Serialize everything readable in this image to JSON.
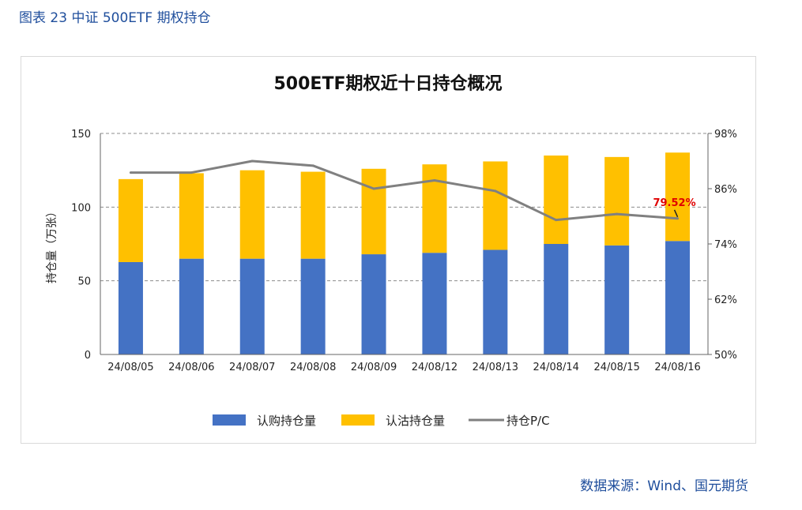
{
  "caption": "图表 23 中证 500ETF 期权持仓",
  "source": "数据来源：Wind、国元期货",
  "chart_data": {
    "type": "bar",
    "stacked": true,
    "title": "500ETF期权近十日持仓概况",
    "ylabel": "持仓量（万张）",
    "ylim": [
      0,
      150
    ],
    "yticks": [
      "0",
      "50",
      "100",
      "150"
    ],
    "y2lim": [
      50,
      98
    ],
    "y2ticks": [
      "50%",
      "62%",
      "74%",
      "86%",
      "98%"
    ],
    "grid": true,
    "legend_position": "bottom",
    "categories": [
      "24/08/05",
      "24/08/06",
      "24/08/07",
      "24/08/08",
      "24/08/09",
      "24/08/12",
      "24/08/13",
      "24/08/14",
      "24/08/15",
      "24/08/16"
    ],
    "series": [
      {
        "name": "认购持仓量",
        "type": "bar",
        "axis": "left",
        "color": "#4472c4",
        "values": [
          62.7,
          65,
          65,
          65,
          68,
          69,
          71,
          75,
          74,
          77
        ]
      },
      {
        "name": "认沽持仓量",
        "type": "bar",
        "axis": "left",
        "color": "#ffc000",
        "values": [
          56.3,
          58,
          60,
          59,
          58,
          60,
          60,
          60,
          60,
          60
        ]
      },
      {
        "name": "持仓P/C",
        "type": "line",
        "axis": "right",
        "color": "#808080",
        "values": [
          89.5,
          89.5,
          92.0,
          91.0,
          86.0,
          87.8,
          85.5,
          79.2,
          80.5,
          79.52
        ]
      }
    ],
    "annotation": {
      "text": "79.52%",
      "category": "24/08/16"
    }
  }
}
